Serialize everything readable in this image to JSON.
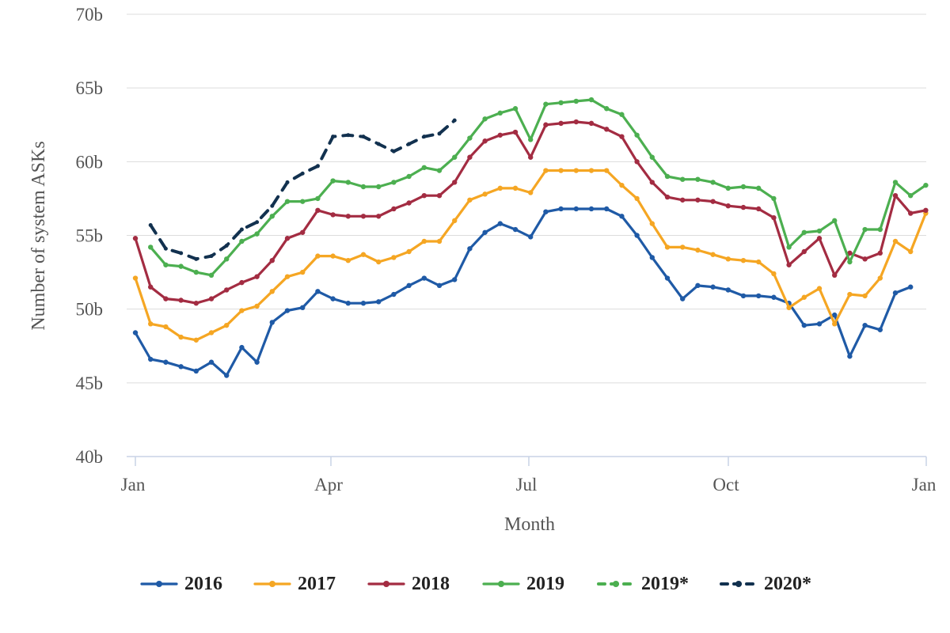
{
  "chart_data": {
    "type": "line",
    "xlabel": "Month",
    "ylabel": "Number of system ASKs",
    "x_ticks": [
      "Jan",
      "Apr",
      "Jul",
      "Oct",
      "Jan"
    ],
    "y_ticks": [
      "40b",
      "45b",
      "50b",
      "55b",
      "60b",
      "65b",
      "70b"
    ],
    "y_tick_values": [
      40,
      45,
      50,
      55,
      60,
      65,
      70
    ],
    "ylim": [
      40,
      70
    ],
    "xlim": [
      1,
      53
    ],
    "grid": "horizontal",
    "legend_position": "bottom",
    "series": [
      {
        "name": "2016",
        "color": "#1f5aa6",
        "dashed": false,
        "x": [
          1,
          2,
          3,
          4,
          5,
          6,
          7,
          8,
          9,
          10,
          11,
          12,
          13,
          14,
          15,
          16,
          17,
          18,
          19,
          20,
          21,
          22,
          23,
          24,
          25,
          26,
          27,
          28,
          29,
          30,
          31,
          32,
          33,
          34,
          35,
          36,
          37,
          38,
          39,
          40,
          41,
          42,
          43,
          44,
          45,
          46,
          47,
          48,
          49,
          50,
          51,
          52
        ],
        "y": [
          48.4,
          46.6,
          46.4,
          46.1,
          45.8,
          46.4,
          45.5,
          47.4,
          46.4,
          49.1,
          49.9,
          50.1,
          51.2,
          50.7,
          50.4,
          50.4,
          50.5,
          51.0,
          51.6,
          52.1,
          51.6,
          52.0,
          54.1,
          55.2,
          55.8,
          55.4,
          54.9,
          56.6,
          56.8,
          56.8,
          56.8,
          56.8,
          56.3,
          55.0,
          53.5,
          52.1,
          50.7,
          51.6,
          51.5,
          51.3,
          50.9,
          50.9,
          50.8,
          50.4,
          48.9,
          49.0,
          49.6,
          46.8,
          48.9,
          48.6,
          51.1,
          51.5
        ]
      },
      {
        "name": "2017",
        "color": "#f5a623",
        "dashed": false,
        "x": [
          1,
          2,
          3,
          4,
          5,
          6,
          7,
          8,
          9,
          10,
          11,
          12,
          13,
          14,
          15,
          16,
          17,
          18,
          19,
          20,
          21,
          22,
          23,
          24,
          25,
          26,
          27,
          28,
          29,
          30,
          31,
          32,
          33,
          34,
          35,
          36,
          37,
          38,
          39,
          40,
          41,
          42,
          43,
          44,
          45,
          46,
          47,
          48,
          49,
          50,
          51,
          52,
          53
        ],
        "y": [
          52.1,
          49.0,
          48.8,
          48.1,
          47.9,
          48.4,
          48.9,
          49.9,
          50.2,
          51.2,
          52.2,
          52.5,
          53.6,
          53.6,
          53.3,
          53.7,
          53.2,
          53.5,
          53.9,
          54.6,
          54.6,
          56.0,
          57.4,
          57.8,
          58.2,
          58.2,
          57.9,
          59.4,
          59.4,
          59.4,
          59.4,
          59.4,
          58.4,
          57.5,
          55.8,
          54.2,
          54.2,
          54.0,
          53.7,
          53.4,
          53.3,
          53.2,
          52.4,
          50.1,
          50.8,
          51.4,
          49.0,
          51.0,
          50.9,
          52.1,
          54.6,
          53.9,
          56.5
        ]
      },
      {
        "name": "2018",
        "color": "#a32c42",
        "dashed": false,
        "x": [
          1,
          2,
          3,
          4,
          5,
          6,
          7,
          8,
          9,
          10,
          11,
          12,
          13,
          14,
          15,
          16,
          17,
          18,
          19,
          20,
          21,
          22,
          23,
          24,
          25,
          26,
          27,
          28,
          29,
          30,
          31,
          32,
          33,
          34,
          35,
          36,
          37,
          38,
          39,
          40,
          41,
          42,
          43,
          44,
          45,
          46,
          47,
          48,
          49,
          50,
          51,
          52,
          53
        ],
        "y": [
          54.8,
          51.5,
          50.7,
          50.6,
          50.4,
          50.7,
          51.3,
          51.8,
          52.2,
          53.3,
          54.8,
          55.2,
          56.7,
          56.4,
          56.3,
          56.3,
          56.3,
          56.8,
          57.2,
          57.7,
          57.7,
          58.6,
          60.3,
          61.4,
          61.8,
          62.0,
          60.3,
          62.5,
          62.6,
          62.7,
          62.6,
          62.2,
          61.7,
          60.0,
          58.6,
          57.6,
          57.4,
          57.4,
          57.3,
          57.0,
          56.9,
          56.8,
          56.2,
          53.0,
          53.9,
          54.8,
          52.3,
          53.8,
          53.4,
          53.8,
          57.7,
          56.5,
          56.7
        ]
      },
      {
        "name": "2019",
        "color": "#4caf50",
        "dashed": false,
        "x": [
          2,
          3,
          4,
          5,
          6,
          7,
          8,
          9,
          10,
          11,
          12,
          13,
          14,
          15,
          16,
          17,
          18,
          19,
          20,
          21,
          22,
          23,
          24,
          25,
          26,
          27,
          28,
          29,
          30,
          31,
          32,
          33,
          34,
          35,
          36,
          37,
          38,
          39,
          40,
          41,
          42,
          43,
          44,
          45,
          46,
          47,
          48,
          49,
          50,
          51,
          52,
          53
        ],
        "y": [
          54.2,
          53.0,
          52.9,
          52.5,
          52.3,
          53.4,
          54.6,
          55.1,
          56.3,
          57.3,
          57.3,
          57.5,
          58.7,
          58.6,
          58.3,
          58.3,
          58.6,
          59.0,
          59.6,
          59.4,
          60.3,
          61.6,
          62.9,
          63.3,
          63.6,
          61.5,
          63.9,
          64.0,
          64.1,
          64.2,
          63.6,
          63.2,
          61.8,
          60.3,
          59.0,
          58.8,
          58.8,
          58.6,
          58.2,
          58.3,
          58.2,
          57.5,
          54.2,
          55.2,
          55.3,
          56.0,
          53.2,
          55.4,
          55.4,
          58.6,
          57.7,
          58.4
        ]
      },
      {
        "name": "2019*",
        "color": "#4caf50",
        "dashed": true,
        "x": [],
        "y": []
      },
      {
        "name": "2020*",
        "color": "#12314f",
        "dashed": true,
        "x": [
          2,
          3,
          4,
          5,
          6,
          7,
          8,
          9,
          10,
          11,
          12,
          13,
          14,
          15,
          16,
          17,
          18,
          19,
          20,
          21,
          22
        ],
        "y": [
          55.7,
          54.1,
          53.8,
          53.4,
          53.6,
          54.3,
          55.4,
          55.9,
          57.0,
          58.6,
          59.2,
          59.7,
          61.7,
          61.8,
          61.7,
          61.2,
          60.7,
          61.2,
          61.7,
          61.9,
          62.8
        ]
      }
    ]
  }
}
